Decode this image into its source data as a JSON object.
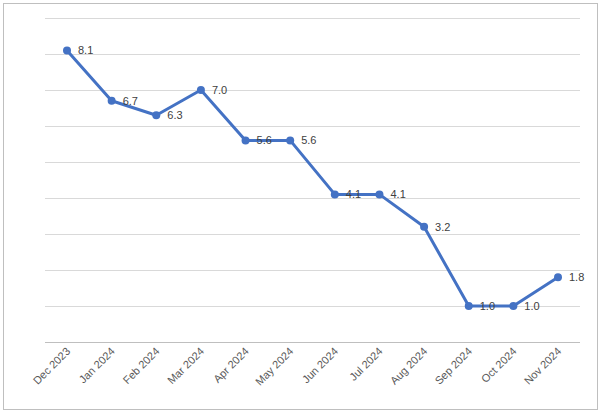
{
  "chart_data": {
    "type": "line",
    "categories": [
      "Dec 2023",
      "Jan 2024",
      "Feb 2024",
      "Mar 2024",
      "Apr 2024",
      "May 2024",
      "Jun 2024",
      "Jul 2024",
      "Aug 2024",
      "Sep 2024",
      "Oct 2024",
      "Nov 2024"
    ],
    "values": [
      8.1,
      6.7,
      6.3,
      7.0,
      5.6,
      5.6,
      4.1,
      4.1,
      3.2,
      1.0,
      1.0,
      1.8
    ],
    "value_labels": [
      "8.1",
      "6.7",
      "6.3",
      "7.0",
      "5.6",
      "5.6",
      "4.1",
      "4.1",
      "3.2",
      "1.0",
      "1.0",
      "1.8"
    ],
    "color": "#4472c4",
    "marker": "circle",
    "line_style": "solid",
    "ylim": [
      0,
      9
    ],
    "yticks": [
      0,
      1,
      2,
      3,
      4,
      5,
      6,
      7,
      8,
      9
    ],
    "grid": true,
    "data_labels": true,
    "tick_labels": "x"
  }
}
